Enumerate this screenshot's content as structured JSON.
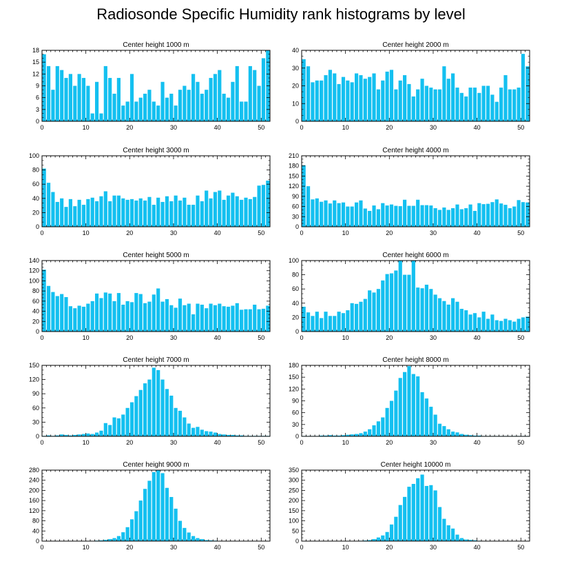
{
  "title": "Radiosonde Specific Humidity rank histograms by level",
  "colors": {
    "bar": "#14c0f0",
    "axis": "#000000",
    "background": "#ffffff"
  },
  "chart_data": [
    {
      "type": "bar",
      "title": "Center height 1000 m",
      "xlim": [
        0,
        52
      ],
      "xticks": [
        0,
        10,
        20,
        30,
        40,
        50
      ],
      "ylim": [
        0,
        18
      ],
      "yticks": [
        0,
        3,
        6,
        9,
        12,
        15,
        18
      ],
      "values": [
        17,
        14,
        8,
        14,
        13,
        11,
        12,
        9,
        12,
        11,
        9,
        2,
        10,
        2,
        14,
        11,
        7,
        11,
        4,
        5,
        12,
        5,
        6,
        7,
        8,
        5,
        4,
        10,
        6,
        7,
        4,
        8,
        9,
        8,
        12,
        10,
        7,
        8,
        11,
        12,
        13,
        7,
        6,
        10,
        14,
        5,
        5,
        14,
        13,
        9,
        16,
        18
      ]
    },
    {
      "type": "bar",
      "title": "Center height 2000 m",
      "xlim": [
        0,
        52
      ],
      "xticks": [
        0,
        10,
        20,
        30,
        40,
        50
      ],
      "ylim": [
        0,
        40
      ],
      "yticks": [
        0,
        10,
        20,
        30,
        40
      ],
      "values": [
        35,
        31,
        22,
        23,
        23,
        26,
        29,
        27,
        21,
        25,
        23,
        22,
        27,
        26,
        24,
        25,
        27,
        18,
        23,
        28,
        29,
        18,
        23,
        26,
        21,
        14,
        18,
        24,
        20,
        19,
        18,
        18,
        31,
        24,
        27,
        19,
        16,
        14,
        19,
        19,
        16,
        20,
        20,
        15,
        11,
        19,
        26,
        18,
        18,
        19,
        38,
        31
      ]
    },
    {
      "type": "bar",
      "title": "Center height 3000 m",
      "xlim": [
        0,
        52
      ],
      "xticks": [
        0,
        10,
        20,
        30,
        40,
        50
      ],
      "ylim": [
        0,
        100
      ],
      "yticks": [
        0,
        20,
        40,
        60,
        80,
        100
      ],
      "values": [
        82,
        62,
        49,
        35,
        40,
        28,
        39,
        29,
        38,
        31,
        39,
        41,
        36,
        43,
        50,
        36,
        44,
        44,
        40,
        38,
        39,
        37,
        40,
        37,
        42,
        31,
        41,
        35,
        43,
        36,
        44,
        37,
        41,
        31,
        31,
        44,
        36,
        51,
        40,
        49,
        51,
        38,
        44,
        48,
        43,
        38,
        41,
        39,
        42,
        58,
        59,
        65
      ]
    },
    {
      "type": "bar",
      "title": "Center height 4000 m",
      "xlim": [
        0,
        52
      ],
      "xticks": [
        0,
        10,
        20,
        30,
        40,
        50
      ],
      "ylim": [
        0,
        210
      ],
      "yticks": [
        0,
        30,
        60,
        90,
        120,
        150,
        180,
        210
      ],
      "values": [
        182,
        120,
        81,
        84,
        74,
        78,
        69,
        78,
        70,
        72,
        60,
        60,
        72,
        78,
        54,
        47,
        63,
        52,
        70,
        63,
        66,
        62,
        61,
        80,
        62,
        62,
        80,
        64,
        64,
        63,
        55,
        50,
        57,
        50,
        55,
        66,
        52,
        55,
        66,
        47,
        70,
        67,
        68,
        73,
        81,
        69,
        65,
        55,
        60,
        79,
        73,
        72
      ]
    },
    {
      "type": "bar",
      "title": "Center height 5000 m",
      "xlim": [
        0,
        52
      ],
      "xticks": [
        0,
        10,
        20,
        30,
        40,
        50
      ],
      "ylim": [
        0,
        140
      ],
      "yticks": [
        0,
        20,
        40,
        60,
        80,
        100,
        120,
        140
      ],
      "values": [
        122,
        90,
        78,
        70,
        74,
        68,
        50,
        46,
        51,
        49,
        55,
        60,
        75,
        66,
        77,
        75,
        60,
        76,
        53,
        60,
        58,
        76,
        74,
        56,
        59,
        73,
        85,
        59,
        64,
        52,
        47,
        65,
        52,
        55,
        34,
        55,
        53,
        46,
        55,
        52,
        55,
        50,
        49,
        51,
        56,
        43,
        44,
        44,
        53,
        44,
        45,
        51
      ]
    },
    {
      "type": "bar",
      "title": "Center height 6000 m",
      "xlim": [
        0,
        52
      ],
      "xticks": [
        0,
        10,
        20,
        30,
        40,
        50
      ],
      "ylim": [
        0,
        100
      ],
      "yticks": [
        0,
        20,
        40,
        60,
        80,
        100
      ],
      "values": [
        35,
        27,
        22,
        28,
        19,
        28,
        22,
        22,
        28,
        26,
        30,
        40,
        39,
        42,
        46,
        58,
        55,
        60,
        72,
        81,
        82,
        86,
        100,
        80,
        80,
        100,
        62,
        61,
        66,
        60,
        52,
        47,
        43,
        38,
        47,
        42,
        32,
        30,
        24,
        26,
        20,
        28,
        18,
        24,
        16,
        15,
        18,
        16,
        14,
        18,
        20,
        21
      ]
    },
    {
      "type": "bar",
      "title": "Center height 7000 m",
      "xlim": [
        0,
        52
      ],
      "xticks": [
        0,
        10,
        20,
        30,
        40,
        50
      ],
      "ylim": [
        0,
        150
      ],
      "yticks": [
        0,
        30,
        60,
        90,
        120,
        150
      ],
      "values": [
        1,
        2,
        1,
        2,
        4,
        3,
        2,
        3,
        4,
        5,
        6,
        5,
        8,
        12,
        28,
        24,
        40,
        38,
        46,
        60,
        72,
        85,
        98,
        112,
        120,
        145,
        140,
        120,
        100,
        86,
        60,
        54,
        40,
        27,
        18,
        20,
        14,
        11,
        10,
        8,
        5,
        4,
        3,
        3,
        2,
        2,
        1,
        1,
        1,
        1,
        1,
        1
      ]
    },
    {
      "type": "bar",
      "title": "Center height 8000 m",
      "xlim": [
        0,
        52
      ],
      "xticks": [
        0,
        10,
        20,
        30,
        40,
        50
      ],
      "ylim": [
        0,
        180
      ],
      "yticks": [
        0,
        30,
        60,
        90,
        120,
        150,
        180
      ],
      "values": [
        1,
        1,
        1,
        1,
        2,
        2,
        3,
        2,
        2,
        3,
        4,
        5,
        6,
        8,
        12,
        18,
        28,
        38,
        48,
        72,
        90,
        116,
        148,
        163,
        178,
        158,
        152,
        112,
        96,
        75,
        55,
        32,
        26,
        18,
        12,
        10,
        6,
        4,
        3,
        2,
        2,
        1,
        1,
        1,
        1,
        1,
        1,
        1,
        1,
        1,
        1,
        1
      ]
    },
    {
      "type": "bar",
      "title": "Center height 9000 m",
      "xlim": [
        0,
        52
      ],
      "xticks": [
        0,
        10,
        20,
        30,
        40,
        50
      ],
      "ylim": [
        0,
        280
      ],
      "yticks": [
        0,
        40,
        80,
        120,
        160,
        200,
        240,
        280
      ],
      "values": [
        0,
        0,
        0,
        0,
        0,
        0,
        0,
        0,
        0,
        0,
        0,
        1,
        2,
        3,
        5,
        8,
        12,
        20,
        35,
        55,
        86,
        118,
        160,
        206,
        238,
        272,
        280,
        268,
        210,
        174,
        128,
        80,
        52,
        34,
        20,
        12,
        8,
        4,
        3,
        2,
        1,
        1,
        1,
        0,
        0,
        0,
        0,
        0,
        0,
        0,
        0,
        0
      ]
    },
    {
      "type": "bar",
      "title": "Center height 10000 m",
      "xlim": [
        0,
        52
      ],
      "xticks": [
        0,
        10,
        20,
        30,
        40,
        50
      ],
      "ylim": [
        0,
        350
      ],
      "yticks": [
        0,
        50,
        100,
        150,
        200,
        250,
        300,
        350
      ],
      "values": [
        0,
        0,
        0,
        0,
        0,
        0,
        0,
        0,
        0,
        0,
        0,
        1,
        1,
        2,
        3,
        5,
        10,
        18,
        28,
        45,
        82,
        120,
        178,
        218,
        268,
        282,
        310,
        328,
        272,
        276,
        250,
        168,
        110,
        78,
        62,
        32,
        15,
        8,
        6,
        4,
        2,
        1,
        1,
        0,
        0,
        0,
        0,
        0,
        0,
        0,
        0,
        0
      ]
    }
  ]
}
